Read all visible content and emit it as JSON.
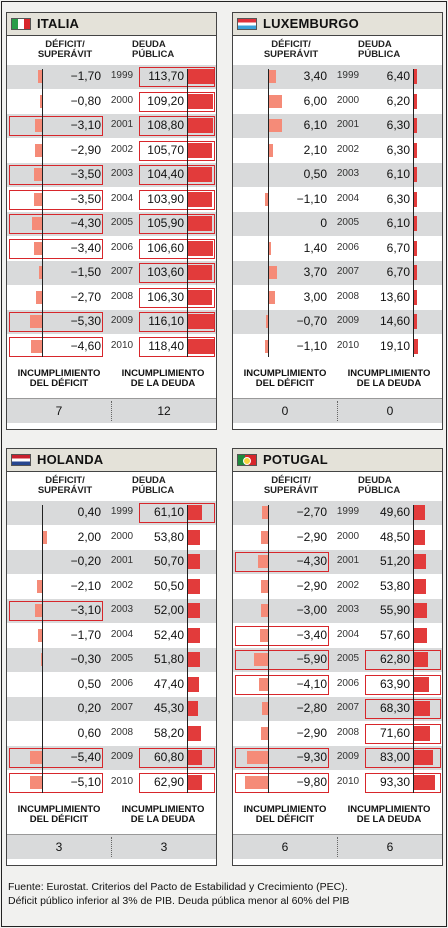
{
  "labels": {
    "deficit_header": [
      "DÉFICIT/",
      "SUPERÁVIT"
    ],
    "debt_header": [
      "DEUDA",
      "PÚBLICA"
    ],
    "deficit_footer": [
      "INCUMPLIMIENTO",
      "DEL DÉFICIT"
    ],
    "debt_footer": [
      "INCUMPLIMIENTO",
      "DE LA DEUDA"
    ]
  },
  "years": [
    "1999",
    "2000",
    "2001",
    "2002",
    "2003",
    "2004",
    "2005",
    "2006",
    "2007",
    "2008",
    "2009",
    "2010"
  ],
  "colors": {
    "deficit_bar": "#f58b78",
    "debt_bar": "#e23b3b",
    "breach_box": "#d7262b",
    "alt_row": "#d9dadb",
    "header_bg": "#e4e2d9"
  },
  "chart_data": [
    {
      "type": "table",
      "country": "ITALIA",
      "flag": "italy-flag",
      "deficit": [
        "−1,70",
        "−0,80",
        "−3,10",
        "−2,90",
        "−3,50",
        "−3,50",
        "−4,30",
        "−3,40",
        "−1,50",
        "−2,70",
        "−5,30",
        "−4,60"
      ],
      "debt": [
        "113,70",
        "109,20",
        "108,80",
        "105,70",
        "104,40",
        "103,90",
        "105,90",
        "106,60",
        "103,60",
        "106,30",
        "116,10",
        "118,40"
      ],
      "deficit_breach_years": [
        "2001",
        "2003",
        "2004",
        "2005",
        "2006",
        "2009",
        "2010"
      ],
      "debt_breach_years": [
        "1999",
        "2000",
        "2001",
        "2002",
        "2003",
        "2004",
        "2005",
        "2006",
        "2007",
        "2008",
        "2009",
        "2010"
      ],
      "deficit_breaches": "7",
      "debt_breaches": "12"
    },
    {
      "type": "table",
      "country": "LUXEMBURGO",
      "flag": "luxembourg-flag",
      "deficit": [
        "3,40",
        "6,00",
        "6,10",
        "2,10",
        "0,50",
        "−1,10",
        "0",
        "1,40",
        "3,70",
        "3,00",
        "−0,70",
        "−1,10"
      ],
      "debt": [
        "6,40",
        "6,20",
        "6,30",
        "6,30",
        "6,10",
        "6,30",
        "6,10",
        "6,70",
        "6,70",
        "13,60",
        "14,60",
        "19,10"
      ],
      "deficit_breach_years": [],
      "debt_breach_years": [],
      "deficit_breaches": "0",
      "debt_breaches": "0"
    },
    {
      "type": "table",
      "country": "HOLANDA",
      "flag": "netherlands-flag",
      "deficit": [
        "0,40",
        "2,00",
        "−0,20",
        "−2,10",
        "−3,10",
        "−1,70",
        "−0,30",
        "0,50",
        "0,20",
        "0,60",
        "−5,40",
        "−5,10"
      ],
      "debt": [
        "61,10",
        "53,80",
        "50,70",
        "50,50",
        "52,00",
        "52,40",
        "51,80",
        "47,40",
        "45,30",
        "58,20",
        "60,80",
        "62,90"
      ],
      "deficit_breach_years": [
        "2003",
        "2009",
        "2010"
      ],
      "debt_breach_years": [
        "1999",
        "2009",
        "2010"
      ],
      "deficit_breaches": "3",
      "debt_breaches": "3"
    },
    {
      "type": "table",
      "country": "POTUGAL",
      "flag": "portugal-flag",
      "deficit": [
        "−2,70",
        "−2,90",
        "−4,30",
        "−2,90",
        "−3,00",
        "−3,40",
        "−5,90",
        "−4,10",
        "−2,80",
        "−2,90",
        "−9,30",
        "−9,80"
      ],
      "debt": [
        "49,60",
        "48,50",
        "51,20",
        "53,80",
        "55,90",
        "57,60",
        "62,80",
        "63,90",
        "68,30",
        "71,60",
        "83,00",
        "93,30"
      ],
      "deficit_breach_years": [
        "2001",
        "2004",
        "2005",
        "2006",
        "2009",
        "2010"
      ],
      "debt_breach_years": [
        "2005",
        "2006",
        "2007",
        "2008",
        "2009",
        "2010"
      ],
      "deficit_breaches": "6",
      "debt_breaches": "6"
    }
  ],
  "source": [
    "Fuente: Eurostat. Criterios del Pacto de Estabilidad y Crecimiento (PEC).",
    "Déficit público inferior al 3% de PIB. Deuda pública menor al 60% del PIB"
  ]
}
